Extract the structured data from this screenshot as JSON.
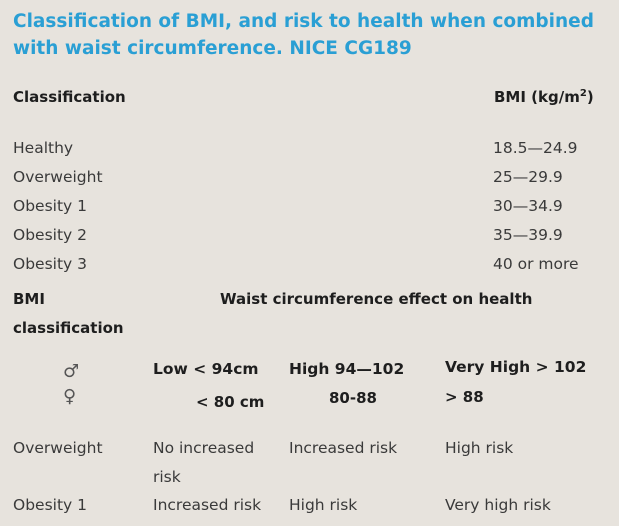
{
  "title": "Classification of BMI, and risk to health when combined with waist circumference. NICE CG189",
  "table1": {
    "col_classification": "Classification",
    "col_bmi_prefix": "BMI (kg/m",
    "col_bmi_sup": "2",
    "col_bmi_suffix": ")",
    "rows": [
      {
        "label": "Healthy",
        "value": "18.5—24.9"
      },
      {
        "label": "Overweight",
        "value": "25—29.9"
      },
      {
        "label": "Obesity 1",
        "value": "30—34.9"
      },
      {
        "label": "Obesity 2",
        "value": "35—39.9"
      },
      {
        "label": "Obesity 3",
        "value": "40 or more"
      }
    ]
  },
  "table2": {
    "col_bmi_line1": "BMI",
    "col_bmi_line2": "classification",
    "col_waist_effect": "Waist circumference effect on health",
    "male_symbol": "♂",
    "female_symbol": "♀",
    "low_male": "Low < 94cm",
    "low_female": "< 80 cm",
    "high_male": "High 94—102",
    "high_female": "80-88",
    "veryhigh_male": "Very High > 102",
    "veryhigh_female": "> 88",
    "rows": [
      {
        "label": "Overweight",
        "low_line1": "No increased",
        "low_line2": "risk",
        "high": "Increased risk",
        "veryhigh": "High risk"
      },
      {
        "label": "Obesity 1",
        "low_line1": "Increased risk",
        "low_line2": "",
        "high": "High risk",
        "veryhigh": "Very high risk"
      }
    ]
  }
}
